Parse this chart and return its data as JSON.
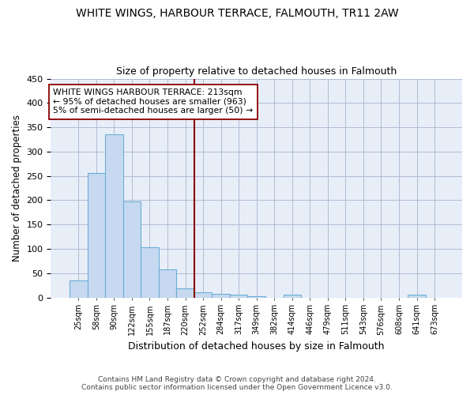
{
  "title": "WHITE WINGS, HARBOUR TERRACE, FALMOUTH, TR11 2AW",
  "subtitle": "Size of property relative to detached houses in Falmouth",
  "xlabel": "Distribution of detached houses by size in Falmouth",
  "ylabel": "Number of detached properties",
  "footer_line1": "Contains HM Land Registry data © Crown copyright and database right 2024.",
  "footer_line2": "Contains public sector information licensed under the Open Government Licence v3.0.",
  "bar_labels": [
    "25sqm",
    "58sqm",
    "90sqm",
    "122sqm",
    "155sqm",
    "187sqm",
    "220sqm",
    "252sqm",
    "284sqm",
    "317sqm",
    "349sqm",
    "382sqm",
    "414sqm",
    "446sqm",
    "479sqm",
    "511sqm",
    "543sqm",
    "576sqm",
    "608sqm",
    "641sqm",
    "673sqm"
  ],
  "bar_values": [
    35,
    256,
    336,
    197,
    104,
    57,
    19,
    11,
    8,
    5,
    3,
    0,
    5,
    0,
    0,
    0,
    0,
    0,
    0,
    5,
    0
  ],
  "bar_color": "#c6d9f0",
  "bar_edge_color": "#6baed6",
  "ylim": [
    0,
    450
  ],
  "yticks": [
    0,
    50,
    100,
    150,
    200,
    250,
    300,
    350,
    400,
    450
  ],
  "vline_x": 6.5,
  "vline_color": "#8b0000",
  "annotation_text": "WHITE WINGS HARBOUR TERRACE: 213sqm\n← 95% of detached houses are smaller (963)\n5% of semi-detached houses are larger (50) →",
  "annotation_box_color": "#ffffff",
  "annotation_box_edge": "#8b0000",
  "plot_bg_color": "#e8eef8",
  "background_color": "#ffffff",
  "grid_color": "#b0bcd4"
}
